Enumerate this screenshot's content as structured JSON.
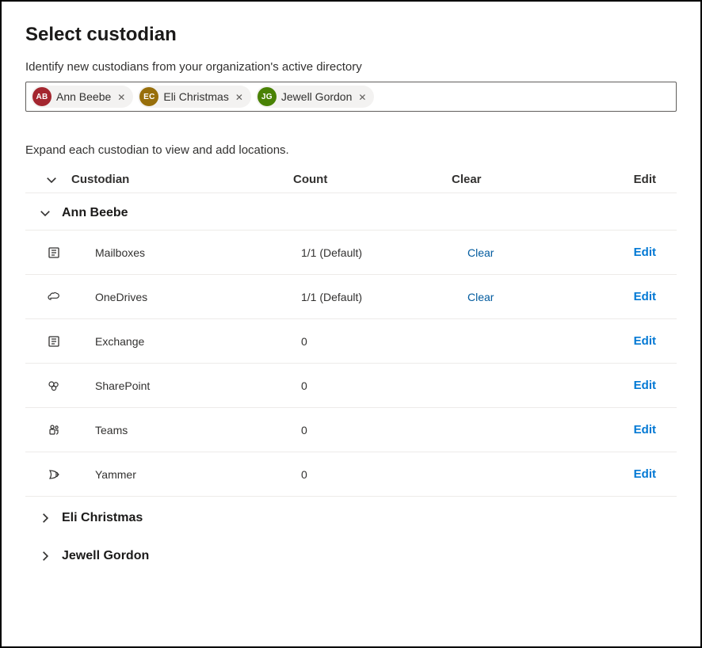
{
  "title": "Select custodian",
  "subtitle": "Identify new custodians from your organization's active directory",
  "helper": "Expand each custodian to view and add locations.",
  "columns": {
    "custodian": "Custodian",
    "count": "Count",
    "clear": "Clear",
    "edit": "Edit"
  },
  "pills": [
    {
      "initials": "AB",
      "name": "Ann Beebe",
      "color": "#a4262f"
    },
    {
      "initials": "EC",
      "name": "Eli Christmas",
      "color": "#986f0b"
    },
    {
      "initials": "JG",
      "name": "Jewell Gordon",
      "color": "#498205"
    }
  ],
  "custodians": [
    {
      "name": "Ann Beebe",
      "expanded": true,
      "locations": [
        {
          "icon": "mailboxes",
          "label": "Mailboxes",
          "count": "1/1 (Default)",
          "clear": "Clear",
          "edit": "Edit"
        },
        {
          "icon": "onedrive",
          "label": "OneDrives",
          "count": "1/1 (Default)",
          "clear": "Clear",
          "edit": "Edit"
        },
        {
          "icon": "exchange",
          "label": "Exchange",
          "count": "0",
          "clear": "",
          "edit": "Edit"
        },
        {
          "icon": "sharepoint",
          "label": "SharePoint",
          "count": "0",
          "clear": "",
          "edit": "Edit"
        },
        {
          "icon": "teams",
          "label": "Teams",
          "count": "0",
          "clear": "",
          "edit": "Edit"
        },
        {
          "icon": "yammer",
          "label": "Yammer",
          "count": "0",
          "clear": "",
          "edit": "Edit"
        }
      ]
    },
    {
      "name": "Eli Christmas",
      "expanded": false,
      "locations": []
    },
    {
      "name": "Jewell Gordon",
      "expanded": false,
      "locations": []
    }
  ],
  "colors": {
    "link_clear": "#005a9e",
    "link_edit": "#0078d4",
    "border": "#edebe9"
  }
}
